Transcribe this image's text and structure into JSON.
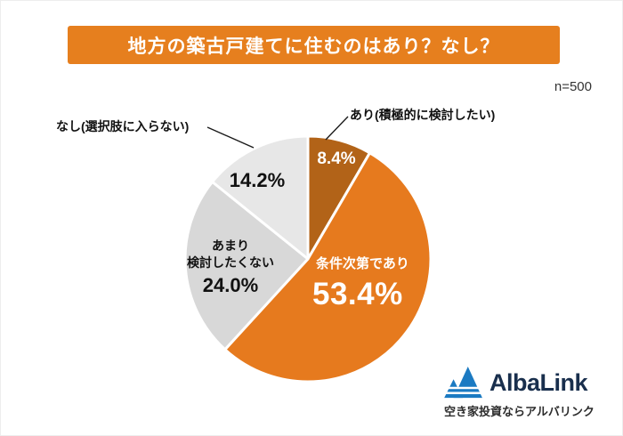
{
  "header": {
    "title": "地方の築古戸建てに住むのはあり？なし？",
    "sample_size": "n=500"
  },
  "chart_data": {
    "type": "pie",
    "title": "地方の築古戸建てに住むのはあり？なし？",
    "n": 500,
    "start_angle_deg": 0,
    "direction": "clockwise",
    "segments": [
      {
        "label": "あり(積極的に検討したい)",
        "value": 8.4,
        "display": "8.4%",
        "color": "#b26318",
        "label_position": "outside-top-right"
      },
      {
        "label": "条件次第であり",
        "value": 53.4,
        "display": "53.4%",
        "color": "#e67a1e",
        "label_position": "inside"
      },
      {
        "label": "あまり検討したくない",
        "label_multiline": "あまり\n検討したくない",
        "value": 24.0,
        "display": "24.0%",
        "color": "#d8d8d8",
        "label_position": "inside"
      },
      {
        "label": "なし(選択肢に入らない)",
        "value": 14.2,
        "display": "14.2%",
        "color": "#e7e7e7",
        "label_position": "outside-top-left"
      }
    ]
  },
  "logo": {
    "name": "AlbaLink",
    "tagline": "空き家投資ならアルバリンク",
    "icon_color": "#1b7ac2",
    "text_color": "#192f4d"
  }
}
